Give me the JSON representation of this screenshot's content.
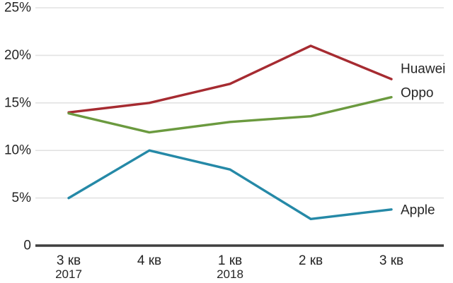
{
  "chart": {
    "background": "#ffffff",
    "axis_color": "#3f3f3f",
    "grid_color": "#e2e2e2",
    "text_color": "#252525"
  },
  "chart_data": {
    "type": "line",
    "title": "",
    "xlabel": "",
    "ylabel": "",
    "categories": [
      "3 кв",
      "4 кв",
      "1 кв",
      "2 кв",
      "3 кв"
    ],
    "category_sublabels": [
      "2017",
      "",
      "2018",
      "",
      ""
    ],
    "series": [
      {
        "name": "Huawei",
        "color": "#a62b31",
        "values": [
          14.0,
          15.0,
          17.0,
          21.0,
          17.5
        ]
      },
      {
        "name": "Oppo",
        "color": "#6b9a3f",
        "values": [
          13.9,
          11.9,
          13.0,
          13.6,
          15.6
        ]
      },
      {
        "name": "Apple",
        "color": "#2589a7",
        "values": [
          5.0,
          10.0,
          8.0,
          2.8,
          3.8
        ]
      }
    ],
    "y_ticks": [
      {
        "label": "25%",
        "value": 25
      },
      {
        "label": "20%",
        "value": 20
      },
      {
        "label": "15%",
        "value": 15
      },
      {
        "label": "10%",
        "value": 10
      },
      {
        "label": "5%",
        "value": 5
      },
      {
        "label": "0",
        "value": 0
      }
    ],
    "ylim": [
      0,
      25
    ],
    "grid": true,
    "legend_position": "right-of-line-ends"
  }
}
